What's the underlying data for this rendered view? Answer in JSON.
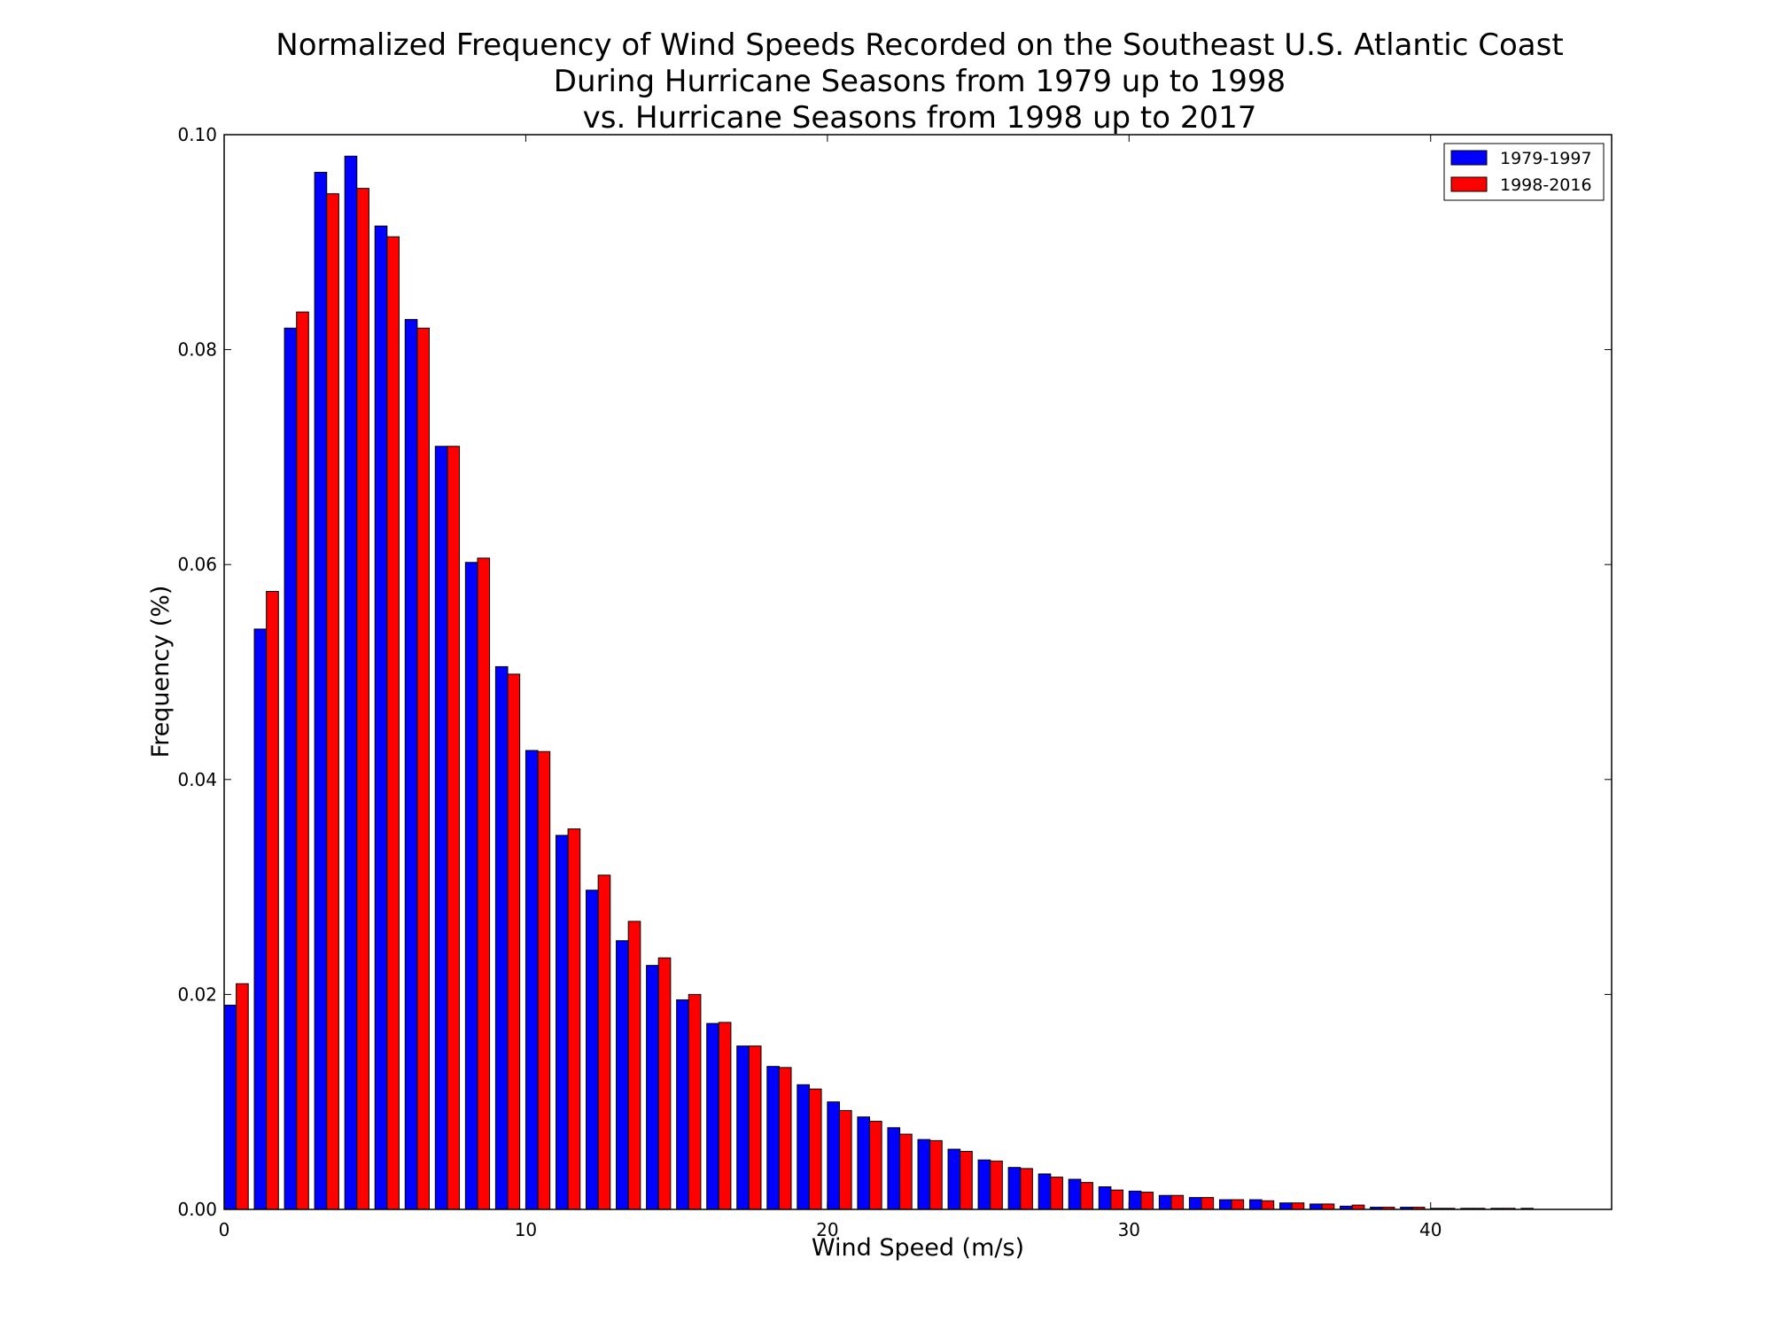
{
  "chart_data": {
    "type": "bar",
    "title": [
      "Normalized Frequency of Wind Speeds Recorded on the Southeast U.S. Atlantic Coast",
      "During Hurricane Seasons from 1979 up to 1998",
      "vs. Hurricane Seasons from 1998 up to 2017"
    ],
    "xlabel": "Wind Speed (m/s)",
    "ylabel": "Frequency (%)",
    "xlim": [
      0,
      46
    ],
    "ylim": [
      0,
      0.1
    ],
    "xticks": [
      "0",
      "10",
      "20",
      "30",
      "40"
    ],
    "yticks": [
      "0.00",
      "0.02",
      "0.04",
      "0.06",
      "0.08",
      "0.10"
    ],
    "grid": false,
    "legend_position": "top-right",
    "x": [
      0,
      1,
      2,
      3,
      4,
      5,
      6,
      7,
      8,
      9,
      10,
      11,
      12,
      13,
      14,
      15,
      16,
      17,
      18,
      19,
      20,
      21,
      22,
      23,
      24,
      25,
      26,
      27,
      28,
      29,
      30,
      31,
      32,
      33,
      34,
      35,
      36,
      37,
      38,
      39,
      40,
      41,
      42,
      43,
      44,
      45
    ],
    "series": [
      {
        "name": "1979-1997",
        "color": "#0000ff",
        "values": [
          0.019,
          0.054,
          0.082,
          0.0965,
          0.098,
          0.0915,
          0.0828,
          0.071,
          0.0602,
          0.0505,
          0.0427,
          0.0348,
          0.0297,
          0.025,
          0.0227,
          0.0195,
          0.0173,
          0.0152,
          0.0133,
          0.0116,
          0.01,
          0.0086,
          0.0076,
          0.0065,
          0.0056,
          0.0046,
          0.0039,
          0.0033,
          0.0028,
          0.0021,
          0.0017,
          0.0013,
          0.0011,
          0.0009,
          0.0009,
          0.0006,
          0.0005,
          0.0003,
          0.0002,
          0.0002,
          0.0001,
          0.0001,
          0.0001,
          0.0001,
          0.0,
          0.0
        ]
      },
      {
        "name": "1998-2016",
        "color": "#ff0000",
        "values": [
          0.021,
          0.0575,
          0.0835,
          0.0945,
          0.095,
          0.0905,
          0.082,
          0.071,
          0.0606,
          0.0498,
          0.0426,
          0.0354,
          0.0311,
          0.0268,
          0.0234,
          0.02,
          0.0174,
          0.0152,
          0.0132,
          0.0112,
          0.0092,
          0.0082,
          0.007,
          0.0064,
          0.0054,
          0.0045,
          0.0038,
          0.003,
          0.0025,
          0.0018,
          0.0016,
          0.0013,
          0.0011,
          0.0009,
          0.0008,
          0.0006,
          0.0005,
          0.0004,
          0.0002,
          0.0002,
          0.0001,
          0.0001,
          0.0001,
          0.0,
          0.0,
          0.0
        ]
      }
    ]
  }
}
